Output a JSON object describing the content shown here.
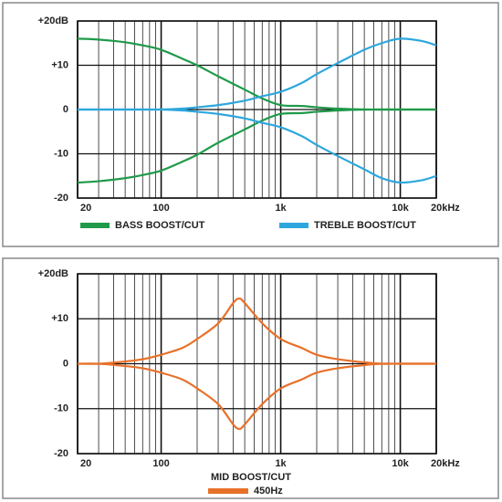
{
  "chart_data": [
    {
      "type": "line",
      "xlog": true,
      "grid": true,
      "x": [
        20,
        30,
        50,
        70,
        100,
        150,
        200,
        300,
        500,
        700,
        1000,
        1500,
        2000,
        3000,
        5000,
        7000,
        10000,
        15000,
        20000
      ],
      "xlim": [
        20,
        20000
      ],
      "xticks": [
        20,
        100,
        {
          "value": 1000,
          "label": "1k"
        },
        {
          "value": 10000,
          "label": "10k"
        },
        {
          "value": 20000,
          "label": "20kHz"
        }
      ],
      "ylim": [
        -20,
        20
      ],
      "yticks": [
        {
          "value": 20,
          "label": "+20dB"
        },
        {
          "value": 10,
          "label": "+10"
        },
        0,
        -10,
        -20
      ],
      "series": [
        {
          "name": "BASS BOOST/CUT",
          "color": "#1f9a4a",
          "values": [
            16,
            15.8,
            15.2,
            14.5,
            13.5,
            11.5,
            10,
            7.5,
            4.5,
            2.5,
            1,
            0.8,
            0.5,
            0.2,
            0,
            0,
            0,
            0,
            0
          ],
          "cut_values": [
            -16.5,
            -16.2,
            -15.5,
            -14.8,
            -13.8,
            -11.8,
            -10.2,
            -7.5,
            -4.5,
            -2.5,
            -1,
            -0.8,
            -0.5,
            -0.2,
            0,
            0,
            0,
            0,
            0
          ]
        },
        {
          "name": "TREBLE BOOST/CUT",
          "color": "#2ea7dd",
          "values": [
            0,
            0,
            0,
            0,
            0,
            0.2,
            0.5,
            1,
            2,
            3,
            4,
            6,
            8,
            10.5,
            13.5,
            15,
            16,
            15.5,
            14.5
          ],
          "cut_values": [
            0,
            0,
            0,
            0,
            0,
            -0.2,
            -0.5,
            -1,
            -2,
            -3,
            -4,
            -6,
            -8,
            -10.5,
            -13.5,
            -15.5,
            -16.5,
            -16,
            -15
          ]
        }
      ]
    },
    {
      "type": "line",
      "xlog": true,
      "grid": true,
      "x": [
        20,
        30,
        50,
        70,
        100,
        150,
        200,
        300,
        400,
        450,
        500,
        700,
        1000,
        1500,
        2000,
        3000,
        5000,
        7000,
        10000,
        20000
      ],
      "xlim": [
        20,
        20000
      ],
      "xticks": [
        20,
        100,
        {
          "value": 1000,
          "label": "1k"
        },
        {
          "value": 10000,
          "label": "10k"
        },
        {
          "value": 20000,
          "label": "20kHz"
        }
      ],
      "ylim": [
        -20,
        20
      ],
      "yticks": [
        {
          "value": 20,
          "label": "+20dB"
        },
        {
          "value": 10,
          "label": "+10"
        },
        0,
        -10,
        -20
      ],
      "legend_title": "MID BOOST/CUT",
      "series": [
        {
          "name": "450Hz",
          "color": "#e8712a",
          "values": [
            0,
            0,
            0.5,
            1,
            2,
            3.5,
            5.5,
            9,
            13.5,
            14.5,
            13.5,
            9,
            5.5,
            3.5,
            2,
            1,
            0.3,
            0,
            0,
            0
          ],
          "cut_values": [
            0,
            0,
            -0.5,
            -1,
            -2,
            -3.5,
            -5.5,
            -9,
            -13.5,
            -14.5,
            -13.5,
            -9,
            -5.5,
            -3.5,
            -2,
            -1,
            -0.3,
            0,
            0,
            0
          ]
        }
      ]
    }
  ]
}
